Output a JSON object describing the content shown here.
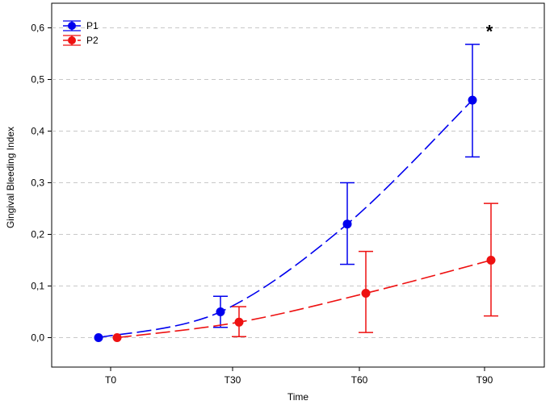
{
  "chart_data": {
    "type": "line",
    "xlabel": "Time",
    "ylabel": "Gingival Bleeding Index",
    "categories": [
      "T0",
      "T30",
      "T60",
      "T90"
    ],
    "ylim": [
      -0.06,
      0.66
    ],
    "yticks": [
      0.0,
      0.1,
      0.2,
      0.3,
      0.4,
      0.5,
      0.6
    ],
    "ytick_labels": [
      "0,0",
      "0,1",
      "0,2",
      "0,3",
      "0,4",
      "0,5",
      "0,6"
    ],
    "grid": "horizontal dashed",
    "legend_position": "top-left",
    "series": [
      {
        "name": "P1",
        "color": "#0000ee",
        "line_style": "dashed",
        "values": [
          0.0,
          0.05,
          0.22,
          0.46
        ],
        "err_low": [
          0.0,
          0.02,
          0.142,
          0.35
        ],
        "err_high": [
          0.0,
          0.08,
          0.3,
          0.568
        ]
      },
      {
        "name": "P2",
        "color": "#ee1111",
        "line_style": "dashed",
        "values": [
          0.0,
          0.03,
          0.086,
          0.15
        ],
        "err_low": [
          0.0,
          0.002,
          0.01,
          0.042
        ],
        "err_high": [
          0.0,
          0.06,
          0.167,
          0.26
        ]
      }
    ],
    "annotations": [
      {
        "text": "*",
        "category": "T90",
        "y": 0.6
      }
    ]
  }
}
